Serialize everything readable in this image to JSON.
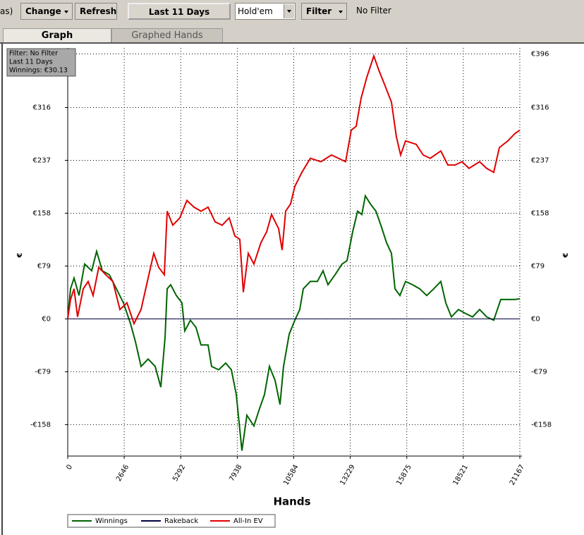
{
  "toolbar": {
    "partial_label": "as)",
    "buttons": [
      "Change",
      "Refresh",
      "Last 11 Days"
    ],
    "game_select": "Hold'em",
    "filter_button": "Filter",
    "filter_status": "No Filter"
  },
  "tabs": [
    "Graph",
    "Graphed Hands"
  ],
  "info_box": [
    "Filter: No Filter",
    "Last  11 Days",
    "Winnings: €30.13"
  ],
  "chart_data": {
    "type": "line",
    "x_label": "Hands",
    "y_label": "€",
    "xlim": [
      0,
      21167
    ],
    "xticks": [
      0,
      2646,
      5292,
      7938,
      10584,
      13229,
      15875,
      18521,
      21167
    ],
    "ylim": [
      -205,
      405
    ],
    "yticks": [
      {
        "value": -158,
        "label": "-€158"
      },
      {
        "value": -79,
        "label": "-€79"
      },
      {
        "value": 0,
        "label": "€0"
      },
      {
        "value": 79,
        "label": "€79"
      },
      {
        "value": 158,
        "label": "€158"
      },
      {
        "value": 237,
        "label": "€237"
      },
      {
        "value": 316,
        "label": "€316"
      },
      {
        "value": 396,
        "label": "€396"
      }
    ],
    "grid": true,
    "legend": "bottom-left",
    "series": [
      {
        "name": "Winnings",
        "color": "#006400",
        "x": [
          0,
          132,
          297,
          528,
          792,
          1123,
          1354,
          1618,
          1948,
          2278,
          2609,
          2939,
          3170,
          3434,
          3764,
          4094,
          4359,
          4557,
          4656,
          4821,
          5085,
          5349,
          5481,
          5745,
          6010,
          6241,
          6571,
          6736,
          7066,
          7396,
          7661,
          7892,
          8156,
          8387,
          8717,
          8981,
          9213,
          9444,
          9708,
          9939,
          10104,
          10368,
          10632,
          10864,
          11029,
          11359,
          11689,
          11953,
          12184,
          12515,
          12845,
          13076,
          13340,
          13571,
          13769,
          13934,
          14166,
          14430,
          14661,
          14925,
          15156,
          15321,
          15552,
          15817,
          16147,
          16477,
          16807,
          17137,
          17468,
          17699,
          17963,
          18293,
          18623,
          18954,
          19284,
          19614,
          19944,
          20274,
          20604,
          20935,
          21167
        ],
        "values": [
          0,
          45,
          61,
          35,
          82,
          72,
          101,
          72,
          66,
          45,
          24,
          -7,
          -34,
          -71,
          -60,
          -71,
          -102,
          -28,
          45,
          51,
          35,
          24,
          -18,
          -2,
          -13,
          -39,
          -39,
          -71,
          -76,
          -66,
          -76,
          -113,
          -197,
          -144,
          -160,
          -134,
          -113,
          -71,
          -92,
          -128,
          -71,
          -23,
          -2,
          14,
          45,
          56,
          56,
          72,
          51,
          66,
          82,
          87,
          130,
          161,
          156,
          184,
          172,
          161,
          140,
          114,
          98,
          45,
          35,
          56,
          51,
          45,
          35,
          45,
          56,
          24,
          3,
          14,
          8,
          3,
          14,
          3,
          -2,
          29,
          29,
          29,
          30
        ]
      },
      {
        "name": "Rakeback",
        "color": "#000040",
        "x": [
          0,
          21167
        ],
        "values": [
          0,
          0
        ]
      },
      {
        "name": "All-In EV",
        "color": "#e00000",
        "x": [
          0,
          132,
          297,
          462,
          726,
          958,
          1189,
          1453,
          1783,
          2113,
          2443,
          2774,
          3104,
          3434,
          3764,
          4028,
          4260,
          4524,
          4656,
          4920,
          5250,
          5580,
          5911,
          6241,
          6571,
          6901,
          7231,
          7562,
          7826,
          8057,
          8222,
          8453,
          8717,
          9047,
          9312,
          9543,
          9873,
          10038,
          10203,
          10434,
          10632,
          10963,
          11359,
          11854,
          12349,
          12680,
          13010,
          13274,
          13505,
          13736,
          14000,
          14331,
          14562,
          14826,
          15156,
          15387,
          15585,
          15817,
          16312,
          16642,
          16972,
          17468,
          17798,
          18128,
          18458,
          18788,
          19284,
          19614,
          19944,
          20208,
          20604,
          20935,
          21167
        ],
        "values": [
          0,
          29,
          45,
          3,
          45,
          56,
          35,
          77,
          66,
          56,
          14,
          24,
          -7,
          14,
          61,
          98,
          77,
          66,
          161,
          140,
          151,
          177,
          167,
          161,
          167,
          145,
          140,
          151,
          124,
          119,
          40,
          98,
          82,
          114,
          130,
          156,
          135,
          103,
          161,
          172,
          198,
          219,
          240,
          235,
          245,
          240,
          235,
          282,
          288,
          330,
          361,
          393,
          372,
          351,
          324,
          272,
          245,
          266,
          261,
          245,
          240,
          251,
          230,
          230,
          235,
          225,
          235,
          225,
          219,
          256,
          266,
          277,
          282
        ]
      }
    ]
  }
}
